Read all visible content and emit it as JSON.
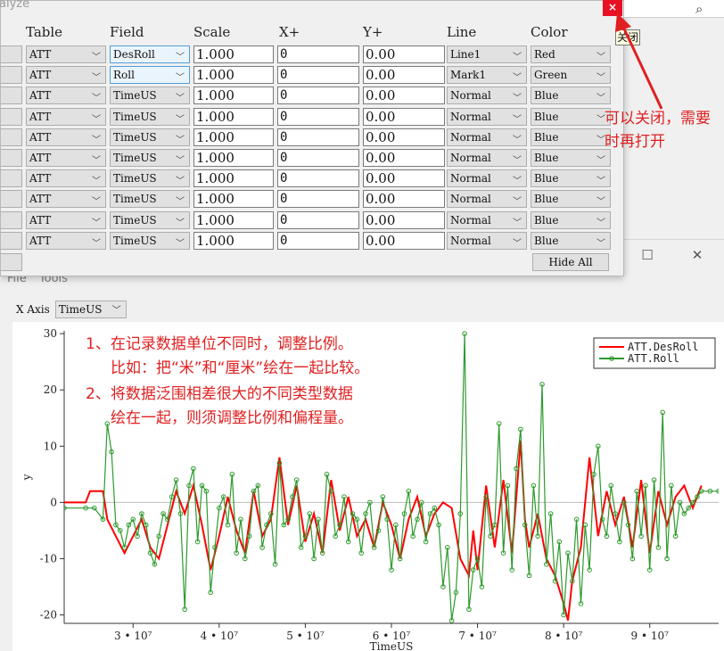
{
  "analyze_window": {
    "title": "alyze",
    "headers": [
      "Table",
      "Field",
      "Scale",
      "X+",
      "Y+",
      "Line",
      "Color"
    ],
    "rows": [
      {
        "table": "ATT",
        "field": "DesRoll",
        "scale": "1.000",
        "x": "0",
        "y": "0.00",
        "line": "Line1",
        "color": "Red"
      },
      {
        "table": "ATT",
        "field": "Roll",
        "scale": "1.000",
        "x": "0",
        "y": "0.00",
        "line": "Mark1",
        "color": "Green"
      },
      {
        "table": "ATT",
        "field": "TimeUS",
        "scale": "1.000",
        "x": "0",
        "y": "0.00",
        "line": "Normal",
        "color": "Blue"
      },
      {
        "table": "ATT",
        "field": "TimeUS",
        "scale": "1.000",
        "x": "0",
        "y": "0.00",
        "line": "Normal",
        "color": "Blue"
      },
      {
        "table": "ATT",
        "field": "TimeUS",
        "scale": "1.000",
        "x": "0",
        "y": "0.00",
        "line": "Normal",
        "color": "Blue"
      },
      {
        "table": "ATT",
        "field": "TimeUS",
        "scale": "1.000",
        "x": "0",
        "y": "0.00",
        "line": "Normal",
        "color": "Blue"
      },
      {
        "table": "ATT",
        "field": "TimeUS",
        "scale": "1.000",
        "x": "0",
        "y": "0.00",
        "line": "Normal",
        "color": "Blue"
      },
      {
        "table": "ATT",
        "field": "TimeUS",
        "scale": "1.000",
        "x": "0",
        "y": "0.00",
        "line": "Normal",
        "color": "Blue"
      },
      {
        "table": "ATT",
        "field": "TimeUS",
        "scale": "1.000",
        "x": "0",
        "y": "0.00",
        "line": "Normal",
        "color": "Blue"
      },
      {
        "table": "ATT",
        "field": "TimeUS",
        "scale": "1.000",
        "x": "0",
        "y": "0.00",
        "line": "Normal",
        "color": "Blue"
      }
    ],
    "hide_all_label": "Hide All",
    "close_glyph": "×",
    "close_tooltip": "关闭"
  },
  "search": {
    "icon": "search-icon"
  },
  "annotations": {
    "close_note": "可以关闭，需要时再打开",
    "note_1_line1": "1、在记录数据单位不同时，调整比例。",
    "note_1_line2": "比如：把“米”和“厘米”绘在一起比较。",
    "note_2_line1": "2、将数据泛围相差很大的不同类型数据",
    "note_2_line2": "绘在一起，则须调整比例和偏程量。"
  },
  "plot_window": {
    "minimize_glyph": "—",
    "maximize_glyph": "☐",
    "close_glyph": "✕",
    "menu": [
      "File",
      "Tools"
    ],
    "x_axis_label": "X Axis",
    "x_axis_value": "TimeUS"
  },
  "chart_data": {
    "type": "line",
    "xlabel": "TimeUS",
    "ylabel": "y",
    "xlim": [
      22000000,
      98000000
    ],
    "ylim": [
      -21.5,
      30.5
    ],
    "xticks": [
      30000000,
      40000000,
      50000000,
      60000000,
      70000000,
      80000000,
      90000000
    ],
    "xtick_labels": [
      "3 • 10⁷",
      "4 • 10⁷",
      "5 • 10⁷",
      "6 • 10⁷",
      "7 • 10⁷",
      "8 • 10⁷",
      "9 • 10⁷"
    ],
    "yticks": [
      -20,
      -10,
      0,
      10,
      20,
      30
    ],
    "legend_position": "top-right",
    "series": [
      {
        "name": "ATT.DesRoll",
        "color": "#ff0000",
        "marker": "none",
        "points": [
          [
            22000000,
            0
          ],
          [
            24500000,
            0
          ],
          [
            25000000,
            2
          ],
          [
            26500000,
            2
          ],
          [
            27000000,
            -3
          ],
          [
            28000000,
            -6
          ],
          [
            29000000,
            -9
          ],
          [
            30000000,
            -6
          ],
          [
            31000000,
            -3
          ],
          [
            32000000,
            -8
          ],
          [
            33000000,
            -10
          ],
          [
            34000000,
            -4
          ],
          [
            35000000,
            2
          ],
          [
            36000000,
            -2
          ],
          [
            37000000,
            3
          ],
          [
            38000000,
            -4
          ],
          [
            39000000,
            -12
          ],
          [
            40000000,
            -6
          ],
          [
            41000000,
            1
          ],
          [
            42000000,
            -5
          ],
          [
            43000000,
            -9
          ],
          [
            44000000,
            2
          ],
          [
            45000000,
            -6
          ],
          [
            46000000,
            -3
          ],
          [
            47000000,
            8
          ],
          [
            48000000,
            -4
          ],
          [
            49000000,
            3
          ],
          [
            50000000,
            -7
          ],
          [
            51000000,
            -2
          ],
          [
            52000000,
            -9
          ],
          [
            53000000,
            4
          ],
          [
            54000000,
            -5
          ],
          [
            55000000,
            1
          ],
          [
            56000000,
            -6
          ],
          [
            57000000,
            -3
          ],
          [
            58000000,
            -8
          ],
          [
            59000000,
            0
          ],
          [
            60000000,
            -4
          ],
          [
            61000000,
            -10
          ],
          [
            62000000,
            -3
          ],
          [
            63000000,
            1
          ],
          [
            64000000,
            -6
          ],
          [
            65000000,
            -2
          ],
          [
            66000000,
            0
          ],
          [
            67000000,
            -1
          ],
          [
            68000000,
            -10
          ],
          [
            69000000,
            -13
          ],
          [
            69500000,
            -5
          ],
          [
            70000000,
            -12
          ],
          [
            71000000,
            3
          ],
          [
            72000000,
            -8
          ],
          [
            73000000,
            4
          ],
          [
            74000000,
            -9
          ],
          [
            75000000,
            11
          ],
          [
            75500000,
            -3
          ],
          [
            76000000,
            -8
          ],
          [
            77000000,
            -2
          ],
          [
            78000000,
            -10
          ],
          [
            79000000,
            -13
          ],
          [
            80000000,
            -18
          ],
          [
            80500000,
            -21
          ],
          [
            81000000,
            -14
          ],
          [
            82000000,
            -8
          ],
          [
            83000000,
            8
          ],
          [
            84000000,
            -6
          ],
          [
            85000000,
            2
          ],
          [
            86000000,
            -4
          ],
          [
            87000000,
            1
          ],
          [
            88000000,
            -8
          ],
          [
            89000000,
            4
          ],
          [
            90000000,
            -9
          ],
          [
            91000000,
            2
          ],
          [
            92000000,
            -4
          ],
          [
            93000000,
            1
          ],
          [
            94000000,
            3
          ],
          [
            95000000,
            -1
          ],
          [
            96000000,
            3
          ]
        ]
      },
      {
        "name": "ATT.Roll",
        "color": "#2e9a2e",
        "marker": "circle",
        "points": [
          [
            22000000,
            -1
          ],
          [
            24500000,
            -1
          ],
          [
            25500000,
            -1
          ],
          [
            26500000,
            -3
          ],
          [
            27000000,
            14
          ],
          [
            27500000,
            9
          ],
          [
            28000000,
            -4
          ],
          [
            28500000,
            -5
          ],
          [
            29000000,
            -8
          ],
          [
            29500000,
            -4
          ],
          [
            30000000,
            -3
          ],
          [
            30500000,
            -6
          ],
          [
            31000000,
            -2
          ],
          [
            31500000,
            -4
          ],
          [
            32000000,
            -9
          ],
          [
            32500000,
            -11
          ],
          [
            33000000,
            -6
          ],
          [
            33500000,
            -2
          ],
          [
            34000000,
            -3
          ],
          [
            34500000,
            1
          ],
          [
            35000000,
            4
          ],
          [
            35500000,
            -2
          ],
          [
            36000000,
            -19
          ],
          [
            36500000,
            3
          ],
          [
            37000000,
            6
          ],
          [
            37500000,
            -7
          ],
          [
            38000000,
            3
          ],
          [
            38500000,
            2
          ],
          [
            39000000,
            -16
          ],
          [
            39500000,
            -8
          ],
          [
            40000000,
            -1
          ],
          [
            40500000,
            1
          ],
          [
            41000000,
            -4
          ],
          [
            41500000,
            5
          ],
          [
            42000000,
            -9
          ],
          [
            42500000,
            -3
          ],
          [
            43000000,
            -10
          ],
          [
            43500000,
            -6
          ],
          [
            44000000,
            2
          ],
          [
            44500000,
            3
          ],
          [
            45000000,
            -8
          ],
          [
            45500000,
            -4
          ],
          [
            46000000,
            -2
          ],
          [
            46500000,
            -11
          ],
          [
            47000000,
            7
          ],
          [
            47500000,
            -4
          ],
          [
            48000000,
            -3
          ],
          [
            48500000,
            1
          ],
          [
            49000000,
            4
          ],
          [
            49500000,
            -8
          ],
          [
            50000000,
            -6
          ],
          [
            50500000,
            -2
          ],
          [
            51000000,
            -10
          ],
          [
            51500000,
            -3
          ],
          [
            52000000,
            -9
          ],
          [
            52500000,
            5
          ],
          [
            53000000,
            2
          ],
          [
            53500000,
            -6
          ],
          [
            54000000,
            -4
          ],
          [
            54500000,
            1
          ],
          [
            55000000,
            -7
          ],
          [
            55500000,
            -2
          ],
          [
            56000000,
            -3
          ],
          [
            56500000,
            -9
          ],
          [
            57000000,
            -2
          ],
          [
            57500000,
            0
          ],
          [
            58000000,
            -8
          ],
          [
            58500000,
            -5
          ],
          [
            59000000,
            1
          ],
          [
            59500000,
            -3
          ],
          [
            60000000,
            -12
          ],
          [
            60500000,
            -4
          ],
          [
            61000000,
            -10
          ],
          [
            61500000,
            -2
          ],
          [
            62000000,
            2
          ],
          [
            62500000,
            -6
          ],
          [
            63000000,
            -3
          ],
          [
            63500000,
            0
          ],
          [
            64000000,
            -7
          ],
          [
            64500000,
            -2
          ],
          [
            65000000,
            -1
          ],
          [
            65500000,
            -4
          ],
          [
            66000000,
            -15
          ],
          [
            66500000,
            -8
          ],
          [
            67000000,
            -21
          ],
          [
            67500000,
            -16
          ],
          [
            68000000,
            -2
          ],
          [
            68500000,
            30
          ],
          [
            69000000,
            -19
          ],
          [
            69500000,
            -12
          ],
          [
            70000000,
            -10
          ],
          [
            70500000,
            -15
          ],
          [
            71000000,
            1
          ],
          [
            71500000,
            -6
          ],
          [
            72000000,
            -4
          ],
          [
            72500000,
            14
          ],
          [
            73000000,
            -9
          ],
          [
            73500000,
            3
          ],
          [
            74000000,
            -12
          ],
          [
            74500000,
            6
          ],
          [
            75000000,
            13
          ],
          [
            75500000,
            -4
          ],
          [
            76000000,
            -13
          ],
          [
            76500000,
            3
          ],
          [
            77000000,
            -6
          ],
          [
            77500000,
            21
          ],
          [
            78000000,
            -11
          ],
          [
            78500000,
            -2
          ],
          [
            79000000,
            -14
          ],
          [
            79500000,
            -7
          ],
          [
            80000000,
            -20
          ],
          [
            80500000,
            -9
          ],
          [
            81000000,
            -14
          ],
          [
            81500000,
            -3
          ],
          [
            82000000,
            -18
          ],
          [
            82500000,
            -4
          ],
          [
            83000000,
            -12
          ],
          [
            83500000,
            5
          ],
          [
            84000000,
            10
          ],
          [
            84500000,
            -3
          ],
          [
            85000000,
            -6
          ],
          [
            85500000,
            3
          ],
          [
            86000000,
            -2
          ],
          [
            86500000,
            -7
          ],
          [
            87000000,
            0
          ],
          [
            87500000,
            -4
          ],
          [
            88000000,
            -10
          ],
          [
            88500000,
            2
          ],
          [
            89000000,
            -6
          ],
          [
            89500000,
            3
          ],
          [
            90000000,
            -12
          ],
          [
            90500000,
            4
          ],
          [
            91000000,
            -8
          ],
          [
            91500000,
            16
          ],
          [
            92000000,
            -10
          ],
          [
            92500000,
            3
          ],
          [
            93000000,
            -6
          ],
          [
            93500000,
            0
          ],
          [
            94000000,
            -2
          ],
          [
            94500000,
            -1
          ],
          [
            95000000,
            0
          ],
          [
            95500000,
            1
          ],
          [
            96000000,
            2
          ],
          [
            97000000,
            2
          ],
          [
            98000000,
            2
          ]
        ]
      }
    ]
  }
}
